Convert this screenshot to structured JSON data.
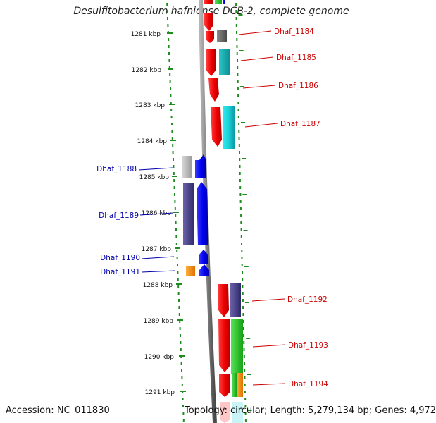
{
  "title": "Desulfitobacterium hafniense DCB-2, complete genome",
  "footer": {
    "accession": "Accession: NC_011830",
    "summary": "Topology: circular; Length: 5,279,134 bp; Genes: 4,972"
  },
  "colors": {
    "backbone": "#8c8c8c",
    "tick_green": "#1e8c1e",
    "label_red": "#cc0000",
    "label_blue": "#0000aa"
  },
  "kbp_ticks": [
    "1281 kbp",
    "1282 kbp",
    "1283 kbp",
    "1284 kbp",
    "1285 kbp",
    "1286 kbp",
    "1287 kbp",
    "1288 kbp",
    "1289 kbp",
    "1290 kbp",
    "1291 kbp"
  ],
  "genes": [
    {
      "name": "Dhaf_1184",
      "strand": "+"
    },
    {
      "name": "Dhaf_1185",
      "strand": "+"
    },
    {
      "name": "Dhaf_1186",
      "strand": "+"
    },
    {
      "name": "Dhaf_1187",
      "strand": "+"
    },
    {
      "name": "Dhaf_1188",
      "strand": "-"
    },
    {
      "name": "Dhaf_1189",
      "strand": "-"
    },
    {
      "name": "Dhaf_1190",
      "strand": "-"
    },
    {
      "name": "Dhaf_1191",
      "strand": "-"
    },
    {
      "name": "Dhaf_1192",
      "strand": "+"
    },
    {
      "name": "Dhaf_1193",
      "strand": "+"
    },
    {
      "name": "Dhaf_1194",
      "strand": "+"
    }
  ]
}
